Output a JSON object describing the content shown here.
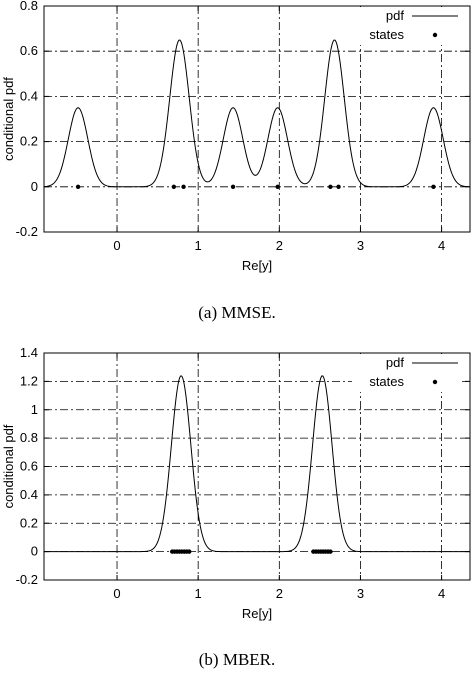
{
  "figure": {
    "caption_a": "(a) MMSE.",
    "caption_b": "(b) MBER."
  },
  "chart_data": [
    {
      "type": "line",
      "xlabel": "Re[y]",
      "ylabel": "conditional pdf",
      "xlim": [
        -0.9,
        4.35
      ],
      "ylim": [
        -0.2,
        0.8
      ],
      "xticks": [
        0,
        1,
        2,
        3,
        4
      ],
      "yticks": [
        -0.2,
        0,
        0.2,
        0.4,
        0.6,
        0.8
      ],
      "ytick_labels": [
        "-0.2",
        "0",
        "0.2",
        "0.4",
        "0.6",
        "0.8"
      ],
      "grid": true,
      "legend_position": "top-right",
      "legend": [
        "pdf",
        "states"
      ],
      "series": [
        {
          "name": "pdf",
          "kind": "line",
          "peaks": [
            {
              "x": -0.48,
              "y": 0.35
            },
            {
              "x": 0.77,
              "y": 0.65
            },
            {
              "x": 1.43,
              "y": 0.35
            },
            {
              "x": 1.98,
              "y": 0.35
            },
            {
              "x": 2.68,
              "y": 0.65
            },
            {
              "x": 3.9,
              "y": 0.35
            }
          ],
          "width": 0.12
        },
        {
          "name": "states",
          "kind": "points",
          "x": [
            -0.48,
            0.7,
            0.82,
            1.43,
            1.98,
            2.63,
            2.73,
            3.9
          ],
          "y": [
            0,
            0,
            0,
            0,
            0,
            0,
            0,
            0
          ]
        }
      ]
    },
    {
      "type": "line",
      "xlabel": "Re[y]",
      "ylabel": "conditional pdf",
      "xlim": [
        -0.9,
        4.35
      ],
      "ylim": [
        -0.2,
        1.4
      ],
      "xticks": [
        0,
        1,
        2,
        3,
        4
      ],
      "yticks": [
        -0.2,
        0,
        0.2,
        0.4,
        0.6,
        0.8,
        1,
        1.2,
        1.4
      ],
      "ytick_labels": [
        "-0.2",
        "0",
        "0.2",
        "0.4",
        "0.6",
        "0.8",
        "1",
        "1.2",
        "1.4"
      ],
      "grid": true,
      "legend_position": "top-right",
      "legend": [
        "pdf",
        "states"
      ],
      "series": [
        {
          "name": "pdf",
          "kind": "line",
          "peaks": [
            {
              "x": 0.79,
              "y": 1.24
            },
            {
              "x": 2.53,
              "y": 1.24
            }
          ],
          "width": 0.12
        },
        {
          "name": "states",
          "kind": "points",
          "x": [
            0.68,
            0.71,
            0.74,
            0.77,
            0.8,
            0.83,
            0.86,
            0.89,
            2.42,
            2.45,
            2.48,
            2.51,
            2.54,
            2.57,
            2.6,
            2.63
          ],
          "y": [
            0,
            0,
            0,
            0,
            0,
            0,
            0,
            0,
            0,
            0,
            0,
            0,
            0,
            0,
            0,
            0
          ]
        }
      ]
    }
  ]
}
